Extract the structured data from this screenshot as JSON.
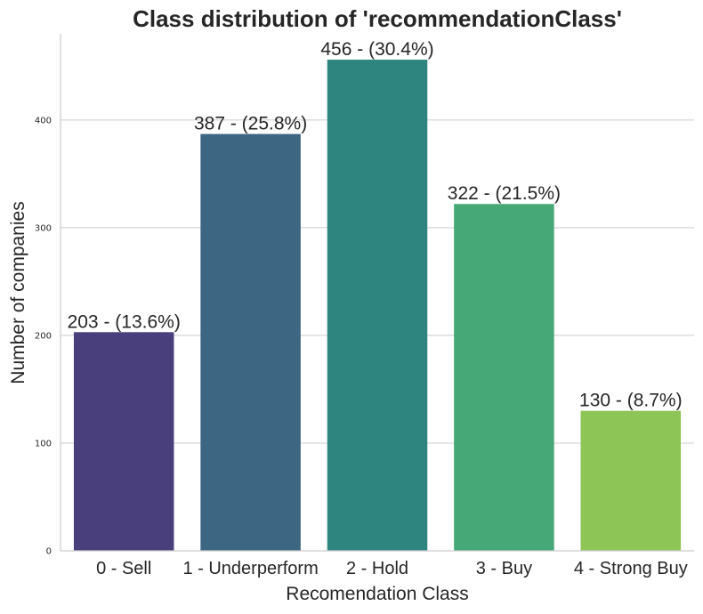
{
  "chart_data": {
    "type": "bar",
    "title": "Class distribution of 'recommendationClass'",
    "xlabel": "Recomendation Class",
    "ylabel": "Number of companies",
    "categories": [
      "0 - Sell",
      "1 - Underperform",
      "2 - Hold",
      "3 - Buy",
      "4 - Strong Buy"
    ],
    "values": [
      203,
      387,
      456,
      322,
      130
    ],
    "bar_labels": [
      "203 - (13.6%)",
      "387 - (25.8%)",
      "456 - (30.4%)",
      "322 - (21.5%)",
      "130 - (8.7%)"
    ],
    "colors": [
      "#4a3f7d",
      "#3d6683",
      "#2e8580",
      "#46a876",
      "#8dc556"
    ],
    "ylim": [
      0,
      480
    ],
    "yticks": [
      0,
      100,
      200,
      300,
      400
    ],
    "grid": "horizontal",
    "legend": "none"
  }
}
